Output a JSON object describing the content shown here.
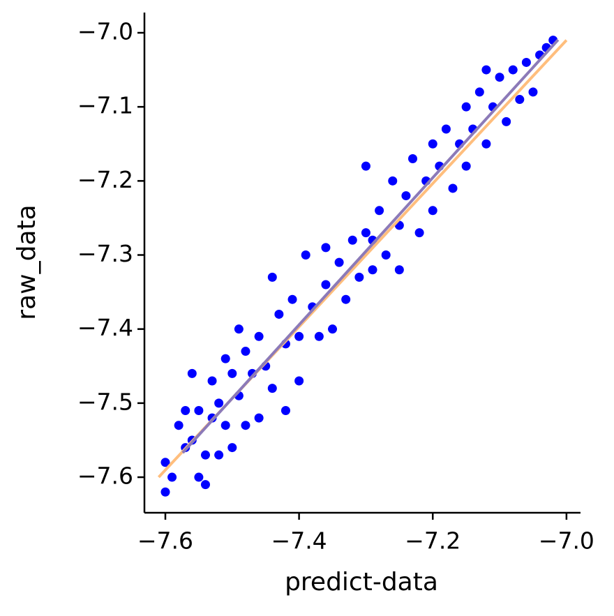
{
  "chart_data": {
    "type": "scatter",
    "xlabel": "predict-data",
    "ylabel": "raw_data",
    "xlim": [
      -7.6313,
      -6.979
    ],
    "ylim": [
      -7.648,
      -6.9727
    ],
    "xticks": [
      {
        "value": -7.6,
        "label": "−7.6"
      },
      {
        "value": -7.4,
        "label": "−7.4"
      },
      {
        "value": -7.2,
        "label": "−7.2"
      },
      {
        "value": -7.0,
        "label": "−7.0"
      }
    ],
    "yticks": [
      {
        "value": -7.6,
        "label": "−7.6"
      },
      {
        "value": -7.5,
        "label": "−7.5"
      },
      {
        "value": -7.4,
        "label": "−7.4"
      },
      {
        "value": -7.3,
        "label": "−7.3"
      },
      {
        "value": -7.2,
        "label": "−7.2"
      },
      {
        "value": -7.1,
        "label": "−7.1"
      },
      {
        "value": -7.0,
        "label": "−7.0"
      }
    ],
    "x": [
      -7.6,
      -7.6,
      -7.59,
      -7.58,
      -7.57,
      -7.57,
      -7.56,
      -7.56,
      -7.55,
      -7.54,
      -7.54,
      -7.53,
      -7.53,
      -7.52,
      -7.52,
      -7.51,
      -7.51,
      -7.5,
      -7.5,
      -7.49,
      -7.49,
      -7.48,
      -7.48,
      -7.47,
      -7.46,
      -7.46,
      -7.45,
      -7.44,
      -7.44,
      -7.43,
      -7.42,
      -7.42,
      -7.41,
      -7.4,
      -7.4,
      -7.39,
      -7.38,
      -7.37,
      -7.36,
      -7.36,
      -7.35,
      -7.34,
      -7.33,
      -7.32,
      -7.31,
      -7.3,
      -7.3,
      -7.29,
      -7.28,
      -7.27,
      -7.26,
      -7.25,
      -7.24,
      -7.23,
      -7.22,
      -7.21,
      -7.2,
      -7.2,
      -7.19,
      -7.18,
      -7.17,
      -7.16,
      -7.15,
      -7.15,
      -7.14,
      -7.13,
      -7.12,
      -7.11,
      -7.1,
      -7.09,
      -7.08,
      -7.07,
      -7.06,
      -7.05,
      -7.04,
      -7.03,
      -7.02,
      -7.12,
      -7.25,
      -7.55,
      -7.29
    ],
    "series": [
      {
        "color": "#0000ff",
        "values": [
          -7.58,
          -7.62,
          -7.6,
          -7.53,
          -7.51,
          -7.56,
          -7.46,
          -7.55,
          -7.51,
          -7.57,
          -7.61,
          -7.47,
          -7.52,
          -7.5,
          -7.57,
          -7.44,
          -7.53,
          -7.46,
          -7.56,
          -7.4,
          -7.49,
          -7.43,
          -7.53,
          -7.46,
          -7.52,
          -7.41,
          -7.45,
          -7.33,
          -7.48,
          -7.38,
          -7.42,
          -7.51,
          -7.36,
          -7.41,
          -7.47,
          -7.3,
          -7.37,
          -7.41,
          -7.34,
          -7.29,
          -7.4,
          -7.31,
          -7.36,
          -7.28,
          -7.33,
          -7.27,
          -7.18,
          -7.32,
          -7.24,
          -7.3,
          -7.2,
          -7.26,
          -7.22,
          -7.17,
          -7.27,
          -7.2,
          -7.15,
          -7.24,
          -7.18,
          -7.13,
          -7.21,
          -7.15,
          -7.1,
          -7.18,
          -7.13,
          -7.08,
          -7.15,
          -7.1,
          -7.06,
          -7.12,
          -7.05,
          -7.09,
          -7.04,
          -7.08,
          -7.03,
          -7.02,
          -7.01,
          -7.05,
          -7.32,
          -7.6,
          -7.28
        ]
      }
    ],
    "lines": [
      {
        "color": "#ffbe7d",
        "x": [
          -7.61,
          -7.0
        ],
        "values": [
          -7.6,
          -7.01
        ]
      },
      {
        "color": "#8c7ab8",
        "x": [
          -7.574,
          -7.0125
        ],
        "values": [
          -7.567,
          -7.0095
        ]
      }
    ]
  }
}
